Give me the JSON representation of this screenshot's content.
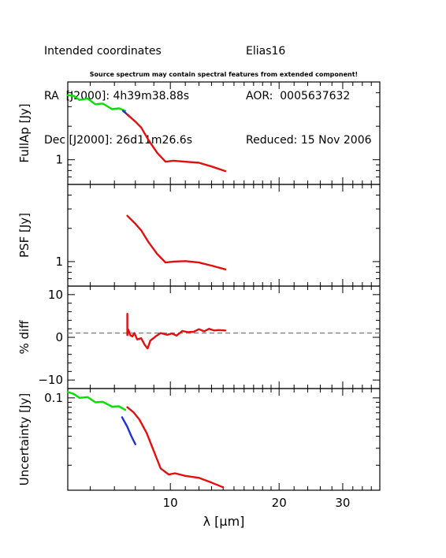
{
  "header": {
    "coords_title": "Intended coordinates",
    "ra": "RA  [J2000]: 4h39m38.88s",
    "dec": "Dec [J2000]: 26d11m26.6s",
    "object": "Elias16",
    "aor": "AOR:  0005637632",
    "reduced": "Reduced: 15 Nov 2006"
  },
  "note": "Source spectrum may contain spectral features from extended component!",
  "colors": {
    "sl2": "#00e000",
    "overlap": "#2030d0",
    "sl1": "#e01010",
    "ref_line": "#808080",
    "axis": "#000000"
  },
  "chart_data": [
    {
      "panel": "fullap",
      "type": "line",
      "ylabel": "FullAp [Jy]",
      "yscale": "log",
      "ylim": [
        0.6,
        5.0
      ],
      "ytick_labels": [
        {
          "value": 1,
          "label": "1"
        }
      ],
      "series": [
        {
          "segment": "sl2",
          "color": "#00e000",
          "x": [
            5.2,
            5.4,
            5.6,
            5.9,
            6.2,
            6.5,
            6.9,
            7.2,
            7.5
          ],
          "y": [
            3.8,
            3.75,
            3.45,
            3.55,
            3.15,
            3.2,
            2.85,
            2.9,
            2.75
          ]
        },
        {
          "segment": "overlap",
          "color": "#2030d0",
          "x": [
            7.4,
            7.55,
            7.7
          ],
          "y": [
            2.75,
            2.6,
            2.45
          ]
        },
        {
          "segment": "sl1",
          "color": "#e01010",
          "x": [
            7.6,
            8.0,
            8.3,
            8.7,
            9.2,
            9.7,
            10.2,
            11.0,
            12.0,
            13.0,
            14.2
          ],
          "y": [
            2.55,
            2.2,
            1.95,
            1.5,
            1.15,
            0.96,
            0.98,
            0.96,
            0.94,
            0.87,
            0.79
          ]
        }
      ]
    },
    {
      "panel": "psf",
      "type": "line",
      "ylabel": "PSF [Jy]",
      "yscale": "log",
      "ylim": [
        0.6,
        5.0
      ],
      "ytick_labels": [
        {
          "value": 1,
          "label": "1"
        }
      ],
      "series": [
        {
          "segment": "sl1",
          "color": "#e01010",
          "x": [
            7.6,
            8.0,
            8.3,
            8.7,
            9.2,
            9.7,
            10.2,
            11.0,
            12.0,
            13.0,
            14.2
          ],
          "y": [
            2.6,
            2.2,
            1.92,
            1.5,
            1.17,
            0.98,
            1.0,
            1.01,
            0.98,
            0.92,
            0.85
          ]
        }
      ]
    },
    {
      "panel": "diff",
      "type": "line",
      "ylabel": "% diff",
      "yscale": "linear",
      "ylim": [
        -12,
        12
      ],
      "ytick_labels": [
        {
          "value": 10,
          "label": "10"
        },
        {
          "value": 0,
          "label": "0"
        },
        {
          "value": -10,
          "label": "−10"
        }
      ],
      "reference_line": 1,
      "series": [
        {
          "segment": "sl1",
          "color": "#e01010",
          "x": [
            7.6,
            7.6,
            7.65,
            7.75,
            7.85,
            7.95,
            8.1,
            8.3,
            8.5,
            8.65,
            8.8,
            9.1,
            9.4,
            9.8,
            10.1,
            10.4,
            10.8,
            11.2,
            11.6,
            12.0,
            12.4,
            12.8,
            13.2,
            13.6,
            14.2
          ],
          "y": [
            5.5,
            0.5,
            1.8,
            0.5,
            0.2,
            1.0,
            -0.5,
            -0.2,
            -1.8,
            -2.6,
            -0.8,
            0.2,
            1.0,
            0.6,
            0.9,
            0.4,
            1.5,
            1.2,
            1.3,
            1.9,
            1.4,
            2.0,
            1.6,
            1.7,
            1.6
          ]
        }
      ]
    },
    {
      "panel": "uncertainty",
      "type": "line",
      "ylabel": "Uncertainty [Jy]",
      "yscale": "log",
      "ylim": [
        0.011,
        0.125
      ],
      "ytick_labels": [
        {
          "value": 0.1,
          "label": "0.1"
        }
      ],
      "series": [
        {
          "segment": "sl2",
          "color": "#00e000",
          "x": [
            5.2,
            5.4,
            5.6,
            5.9,
            6.2,
            6.5,
            6.9,
            7.2,
            7.5
          ],
          "y": [
            0.115,
            0.11,
            0.1,
            0.102,
            0.09,
            0.091,
            0.081,
            0.082,
            0.075
          ]
        },
        {
          "segment": "overlap",
          "color": "#2030d0",
          "x": [
            7.35,
            7.6,
            7.8,
            8.0
          ],
          "y": [
            0.063,
            0.05,
            0.04,
            0.033
          ]
        },
        {
          "segment": "sl1",
          "color": "#e01010",
          "x": [
            7.6,
            7.9,
            8.2,
            8.6,
            9.0,
            9.4,
            9.9,
            10.3,
            11.0,
            12.0,
            13.0,
            14.0
          ],
          "y": [
            0.08,
            0.071,
            0.06,
            0.043,
            0.028,
            0.0185,
            0.016,
            0.0165,
            0.0155,
            0.0148,
            0.0132,
            0.0118
          ]
        }
      ]
    }
  ],
  "x_axis": {
    "xlabel": "λ [μm]",
    "xscale": "log",
    "xlim": [
      5.2,
      38
    ],
    "tick_labels": [
      {
        "value": 10,
        "label": "10"
      },
      {
        "value": 20,
        "label": "20"
      },
      {
        "value": 30,
        "label": "30"
      }
    ]
  }
}
